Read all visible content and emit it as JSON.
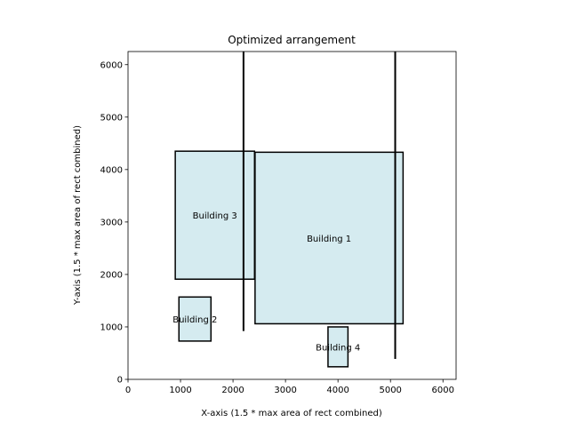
{
  "chart_data": {
    "type": "rectangles",
    "title": "Optimized arrangement",
    "xlabel": "X-axis (1.5 * max area of rect combined)",
    "ylabel": "Y-axis (1.5 * max area of rect combined)",
    "xlim": [
      0,
      6250
    ],
    "ylim": [
      0,
      6250
    ],
    "xticks": [
      0,
      1000,
      2000,
      3000,
      4000,
      5000,
      6000
    ],
    "yticks": [
      0,
      1000,
      2000,
      3000,
      4000,
      5000,
      6000
    ],
    "grid": false,
    "fill_color": "#d5ebf0",
    "edge_color": "#000000",
    "rectangles": [
      {
        "label": "Building 1",
        "x": 2420,
        "y": 1060,
        "width": 2820,
        "height": 3270
      },
      {
        "label": "Building 2",
        "x": 970,
        "y": 730,
        "width": 610,
        "height": 840
      },
      {
        "label": "Building 3",
        "x": 900,
        "y": 1910,
        "width": 1510,
        "height": 2440
      },
      {
        "label": "Building 4",
        "x": 3810,
        "y": 240,
        "width": 380,
        "height": 760
      }
    ],
    "vertical_lines": [
      {
        "x": 2200,
        "y0": 920,
        "y1": 6250
      },
      {
        "x": 5090,
        "y0": 390,
        "y1": 6250
      }
    ]
  }
}
